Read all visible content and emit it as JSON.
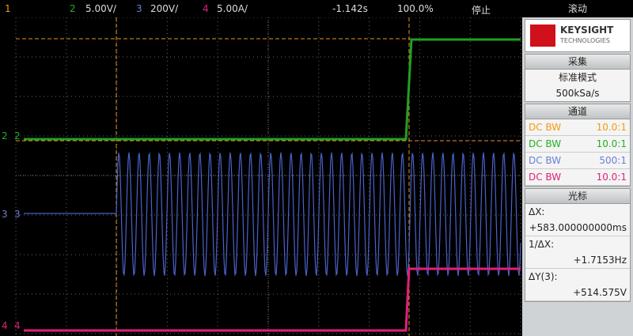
{
  "top_bar": {
    "ch1": "1",
    "ch2": "2",
    "ch2_scale": "5.00V/",
    "ch3": "3",
    "ch3_scale": "200V/",
    "ch4": "4",
    "ch4_scale": "5.00A/",
    "time": "-1.142s",
    "zoom": "100.0%",
    "state": "停止",
    "mode": "滚动"
  },
  "screen": {
    "markers": [
      "2",
      "3",
      "4"
    ]
  },
  "panel": {
    "brand": "KEYSIGHT",
    "brand_sub": "TECHNOLOGIES",
    "acquire": {
      "title": "采集",
      "mode": "标准模式",
      "rate": "500kSa/s"
    },
    "channels": {
      "title": "通道",
      "rows": [
        [
          "DC BW",
          "10.0:1"
        ],
        [
          "DC BW",
          "10.0:1"
        ],
        [
          "DC BW",
          "500:1"
        ],
        [
          "DC BW",
          "10.0:1"
        ]
      ]
    },
    "cursors": {
      "title": "光标",
      "dx_label": "ΔX:",
      "dx": "+583.000000000ms",
      "inv_label": "1/ΔX:",
      "inv": "+1.7153Hz",
      "dy_label": "ΔY(3):",
      "dy": "+514.575V"
    }
  }
}
